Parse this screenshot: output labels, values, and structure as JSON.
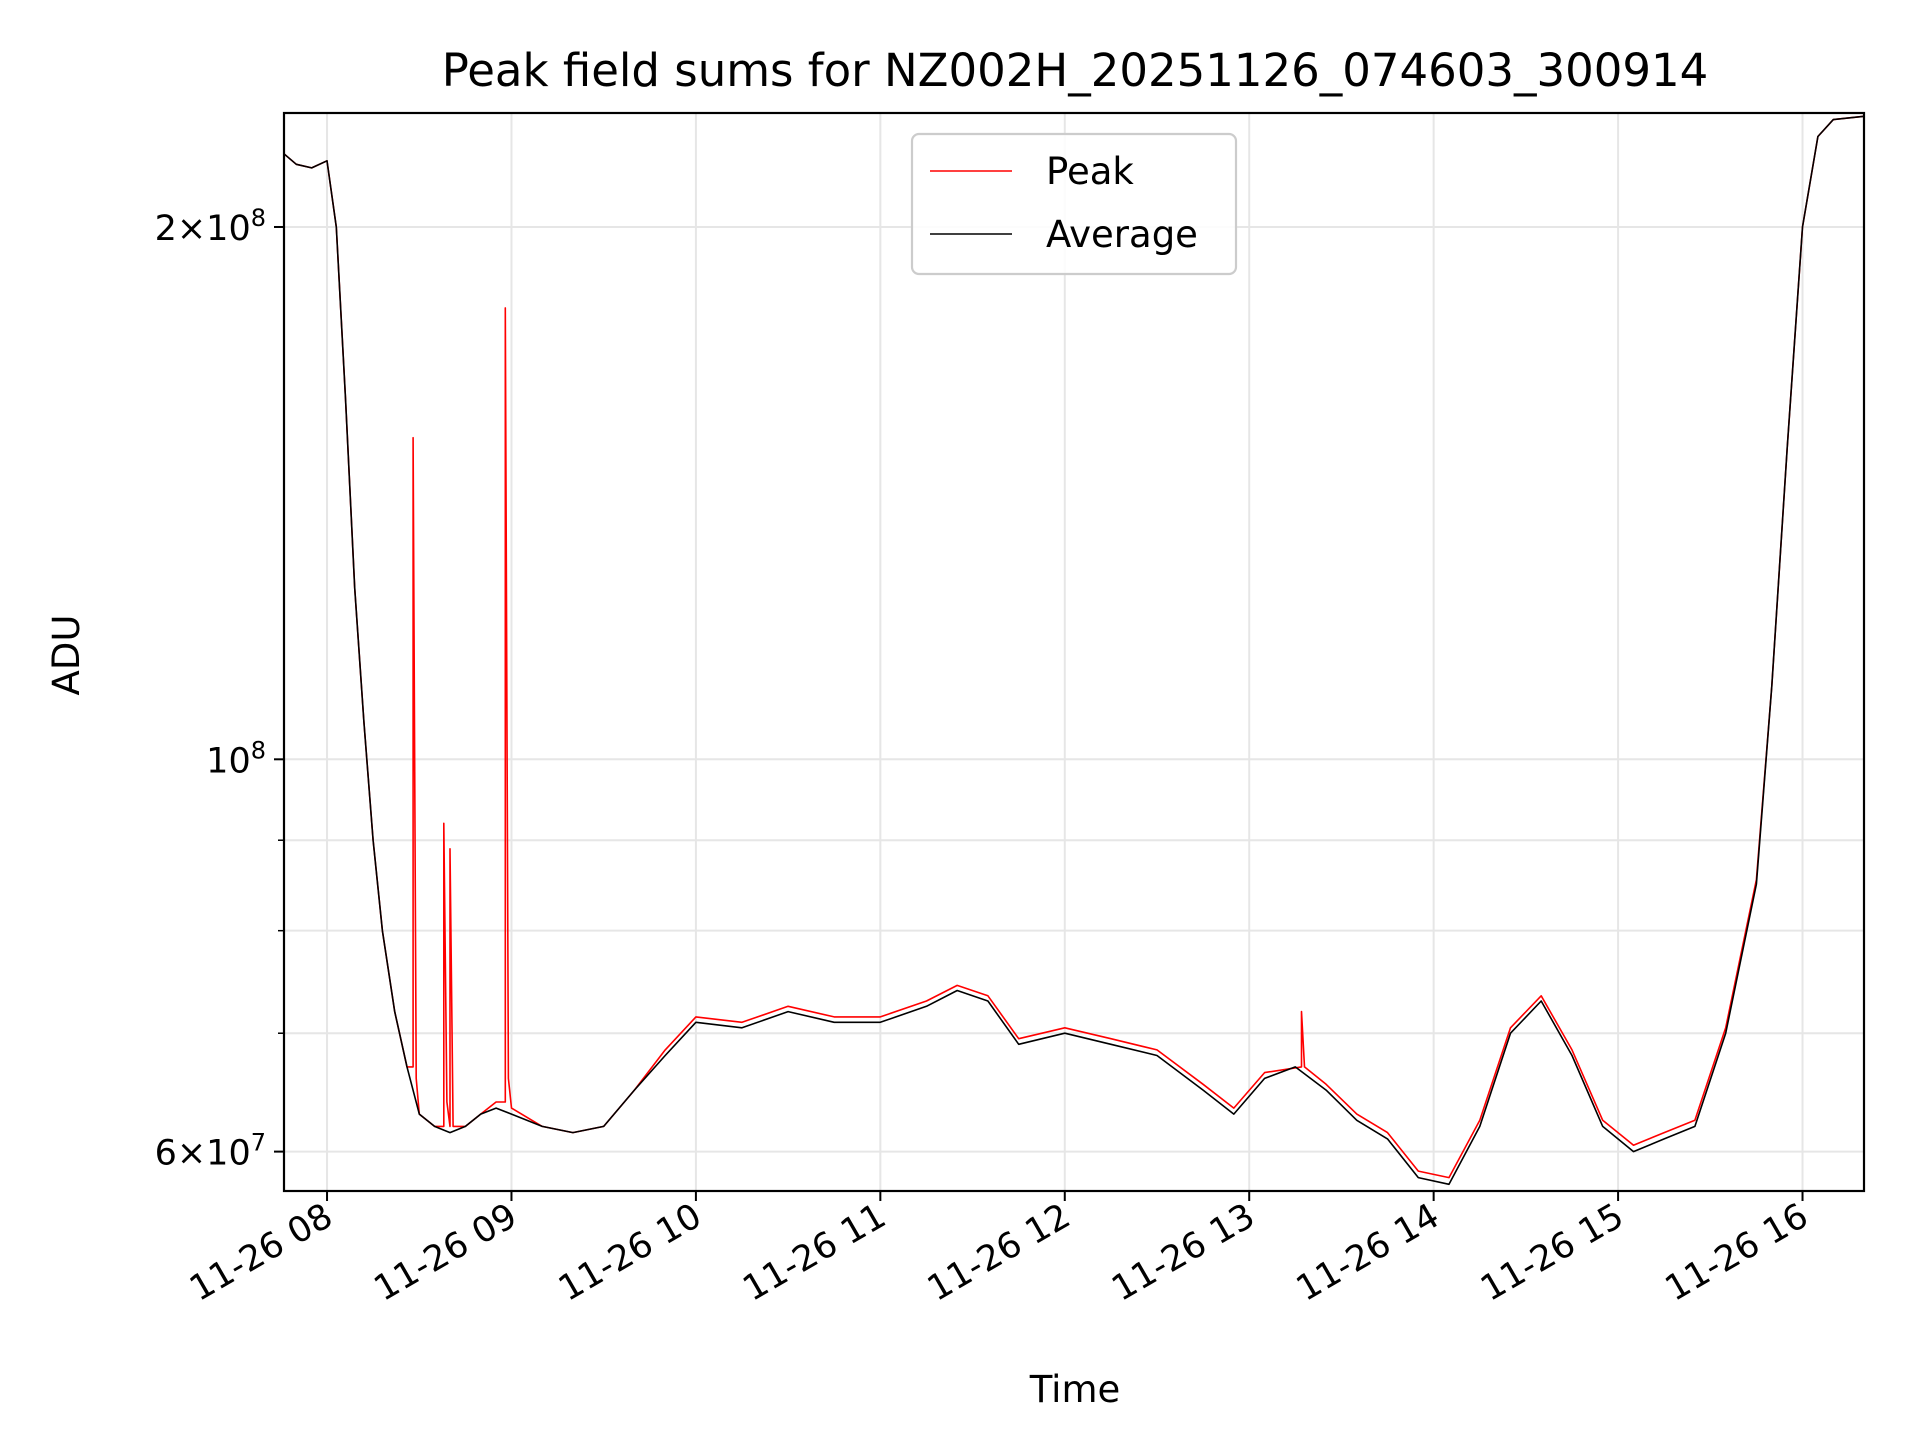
{
  "chart_data": {
    "type": "line",
    "title": "Peak field sums for NZ002H_20251126_074603_300914",
    "xlabel": "Time",
    "ylabel": "ADU",
    "yscale": "log",
    "ylim": [
      57000000,
      232000000
    ],
    "xlim": [
      "2025-11-26 07:46",
      "2025-11-26 16:20"
    ],
    "grid": true,
    "legend_position": "top-center",
    "x_ticks": [
      {
        "value": "2025-11-26 08:00",
        "label": "11-26 08"
      },
      {
        "value": "2025-11-26 09:00",
        "label": "11-26 09"
      },
      {
        "value": "2025-11-26 10:00",
        "label": "11-26 10"
      },
      {
        "value": "2025-11-26 11:00",
        "label": "11-26 11"
      },
      {
        "value": "2025-11-26 12:00",
        "label": "11-26 12"
      },
      {
        "value": "2025-11-26 13:00",
        "label": "11-26 13"
      },
      {
        "value": "2025-11-26 14:00",
        "label": "11-26 14"
      },
      {
        "value": "2025-11-26 15:00",
        "label": "11-26 15"
      },
      {
        "value": "2025-11-26 16:00",
        "label": "11-26 16"
      }
    ],
    "y_major_ticks": [
      {
        "value": 60000000,
        "mantissa": "6",
        "base": "10",
        "exp": "7"
      },
      {
        "value": 100000000,
        "mantissa": "",
        "base": "10",
        "exp": "8"
      },
      {
        "value": 200000000,
        "mantissa": "2",
        "base": "10",
        "exp": "8"
      }
    ],
    "y_minor_ticks": [
      70000000,
      80000000,
      90000000
    ],
    "series": [
      {
        "name": "Average",
        "color": "#000000",
        "x": [
          "2025-11-26 07:46",
          "2025-11-26 07:50",
          "2025-11-26 07:55",
          "2025-11-26 08:00",
          "2025-11-26 08:03",
          "2025-11-26 08:06",
          "2025-11-26 08:09",
          "2025-11-26 08:12",
          "2025-11-26 08:15",
          "2025-11-26 08:18",
          "2025-11-26 08:22",
          "2025-11-26 08:26",
          "2025-11-26 08:30",
          "2025-11-26 08:35",
          "2025-11-26 08:40",
          "2025-11-26 08:45",
          "2025-11-26 08:50",
          "2025-11-26 08:55",
          "2025-11-26 09:00",
          "2025-11-26 09:10",
          "2025-11-26 09:20",
          "2025-11-26 09:30",
          "2025-11-26 09:40",
          "2025-11-26 09:50",
          "2025-11-26 10:00",
          "2025-11-26 10:15",
          "2025-11-26 10:30",
          "2025-11-26 10:45",
          "2025-11-26 11:00",
          "2025-11-26 11:15",
          "2025-11-26 11:25",
          "2025-11-26 11:35",
          "2025-11-26 11:45",
          "2025-11-26 12:00",
          "2025-11-26 12:15",
          "2025-11-26 12:30",
          "2025-11-26 12:45",
          "2025-11-26 12:55",
          "2025-11-26 13:05",
          "2025-11-26 13:15",
          "2025-11-26 13:25",
          "2025-11-26 13:35",
          "2025-11-26 13:45",
          "2025-11-26 13:55",
          "2025-11-26 14:05",
          "2025-11-26 14:15",
          "2025-11-26 14:25",
          "2025-11-26 14:35",
          "2025-11-26 14:45",
          "2025-11-26 14:55",
          "2025-11-26 15:05",
          "2025-11-26 15:15",
          "2025-11-26 15:25",
          "2025-11-26 15:35",
          "2025-11-26 15:45",
          "2025-11-26 15:50",
          "2025-11-26 15:55",
          "2025-11-26 16:00",
          "2025-11-26 16:05",
          "2025-11-26 16:10",
          "2025-11-26 16:20"
        ],
        "y": [
          220000000,
          217000000,
          216000000,
          218000000,
          200000000,
          160000000,
          125000000,
          105000000,
          90000000,
          80000000,
          72000000,
          67000000,
          63000000,
          62000000,
          61500000,
          62000000,
          63000000,
          63500000,
          63000000,
          62000000,
          61500000,
          62000000,
          65000000,
          68000000,
          71000000,
          70500000,
          72000000,
          71000000,
          71000000,
          72500000,
          74000000,
          73000000,
          69000000,
          70000000,
          69000000,
          68000000,
          65000000,
          63000000,
          66000000,
          67000000,
          65000000,
          62500000,
          61000000,
          58000000,
          57500000,
          62000000,
          70000000,
          73000000,
          68000000,
          62000000,
          60000000,
          61000000,
          62000000,
          70000000,
          85000000,
          110000000,
          150000000,
          200000000,
          225000000,
          230000000,
          231000000
        ]
      },
      {
        "name": "Peak",
        "color": "#ff0000",
        "x": [
          "2025-11-26 07:46",
          "2025-11-26 07:50",
          "2025-11-26 07:55",
          "2025-11-26 08:00",
          "2025-11-26 08:03",
          "2025-11-26 08:06",
          "2025-11-26 08:09",
          "2025-11-26 08:12",
          "2025-11-26 08:15",
          "2025-11-26 08:18",
          "2025-11-26 08:22",
          "2025-11-26 08:26",
          "2025-11-26 08:28",
          "2025-11-26 08:28",
          "2025-11-26 08:29",
          "2025-11-26 08:30",
          "2025-11-26 08:35",
          "2025-11-26 08:38",
          "2025-11-26 08:38",
          "2025-11-26 08:39",
          "2025-11-26 08:40",
          "2025-11-26 08:40",
          "2025-11-26 08:41",
          "2025-11-26 08:45",
          "2025-11-26 08:50",
          "2025-11-26 08:55",
          "2025-11-26 08:58",
          "2025-11-26 08:58",
          "2025-11-26 08:59",
          "2025-11-26 09:00",
          "2025-11-26 09:10",
          "2025-11-26 09:20",
          "2025-11-26 09:30",
          "2025-11-26 09:40",
          "2025-11-26 09:50",
          "2025-11-26 10:00",
          "2025-11-26 10:15",
          "2025-11-26 10:30",
          "2025-11-26 10:45",
          "2025-11-26 11:00",
          "2025-11-26 11:15",
          "2025-11-26 11:25",
          "2025-11-26 11:35",
          "2025-11-26 11:45",
          "2025-11-26 12:00",
          "2025-11-26 12:15",
          "2025-11-26 12:30",
          "2025-11-26 12:45",
          "2025-11-26 12:55",
          "2025-11-26 13:05",
          "2025-11-26 13:17",
          "2025-11-26 13:17",
          "2025-11-26 13:18",
          "2025-11-26 13:25",
          "2025-11-26 13:35",
          "2025-11-26 13:45",
          "2025-11-26 13:55",
          "2025-11-26 14:05",
          "2025-11-26 14:15",
          "2025-11-26 14:25",
          "2025-11-26 14:35",
          "2025-11-26 14:45",
          "2025-11-26 14:55",
          "2025-11-26 15:05",
          "2025-11-26 15:15",
          "2025-11-26 15:25",
          "2025-11-26 15:35",
          "2025-11-26 15:45",
          "2025-11-26 15:50",
          "2025-11-26 15:55",
          "2025-11-26 16:00",
          "2025-11-26 16:05",
          "2025-11-26 16:10",
          "2025-11-26 16:20"
        ],
        "y": [
          220000000,
          217000000,
          216000000,
          218000000,
          200000000,
          160000000,
          125000000,
          105000000,
          90000000,
          80000000,
          72000000,
          67000000,
          67000000,
          152000000,
          66000000,
          63000000,
          62000000,
          62000000,
          92000000,
          64000000,
          62000000,
          89000000,
          62000000,
          62000000,
          63000000,
          64000000,
          64000000,
          180000000,
          66000000,
          63500000,
          62000000,
          61500000,
          62000000,
          65000000,
          68500000,
          71500000,
          71000000,
          72500000,
          71500000,
          71500000,
          73000000,
          74500000,
          73500000,
          69500000,
          70500000,
          69500000,
          68500000,
          65500000,
          63500000,
          66500000,
          67000000,
          72000000,
          67000000,
          65500000,
          63000000,
          61500000,
          58500000,
          58000000,
          62500000,
          70500000,
          73500000,
          68500000,
          62500000,
          60500000,
          61500000,
          62500000,
          70500000,
          85500000,
          110000000,
          150000000,
          200000000,
          225000000,
          230000000,
          231000000
        ]
      }
    ]
  }
}
